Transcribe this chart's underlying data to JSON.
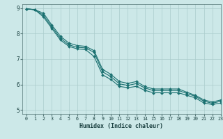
{
  "title": "",
  "xlabel": "Humidex (Indice chaleur)",
  "background_color": "#cce8e8",
  "grid_color": "#aacccc",
  "line_color": "#1a7070",
  "xlim": [
    -0.5,
    23
  ],
  "ylim": [
    4.85,
    9.15
  ],
  "xticks": [
    0,
    1,
    2,
    3,
    4,
    5,
    6,
    7,
    8,
    9,
    10,
    11,
    12,
    13,
    14,
    15,
    16,
    17,
    18,
    19,
    20,
    21,
    22,
    23
  ],
  "yticks": [
    5,
    6,
    7,
    8,
    9
  ],
  "line1_x": [
    0,
    1,
    2,
    3,
    4,
    5,
    6,
    7,
    8,
    9,
    10,
    11,
    12,
    13,
    14,
    15,
    16,
    17,
    18,
    19,
    20,
    21,
    22,
    23
  ],
  "line1_y": [
    8.97,
    8.93,
    8.72,
    8.26,
    7.82,
    7.56,
    7.46,
    7.44,
    7.26,
    6.5,
    6.31,
    6.03,
    5.97,
    6.04,
    5.87,
    5.77,
    5.77,
    5.77,
    5.77,
    5.65,
    5.54,
    5.35,
    5.27,
    5.35
  ],
  "line2_x": [
    0,
    1,
    2,
    3,
    4,
    5,
    6,
    7,
    8,
    9,
    10,
    11,
    12,
    13,
    14,
    15,
    16,
    17,
    18,
    19,
    20,
    21,
    22,
    23
  ],
  "line2_y": [
    8.97,
    8.93,
    8.65,
    8.2,
    7.75,
    7.5,
    7.4,
    7.37,
    7.1,
    6.38,
    6.2,
    5.93,
    5.88,
    5.93,
    5.78,
    5.68,
    5.68,
    5.68,
    5.68,
    5.58,
    5.48,
    5.28,
    5.22,
    5.28
  ],
  "line3_x": [
    0,
    1,
    2,
    3,
    4,
    5,
    6,
    7,
    8,
    9,
    10,
    11,
    12,
    13,
    14,
    15,
    16,
    17,
    18,
    19,
    20,
    21,
    22,
    23
  ],
  "line3_y": [
    8.97,
    8.93,
    8.8,
    8.33,
    7.9,
    7.63,
    7.53,
    7.5,
    7.33,
    6.6,
    6.4,
    6.12,
    6.05,
    6.12,
    5.93,
    5.83,
    5.83,
    5.83,
    5.83,
    5.7,
    5.58,
    5.4,
    5.32,
    5.4
  ]
}
